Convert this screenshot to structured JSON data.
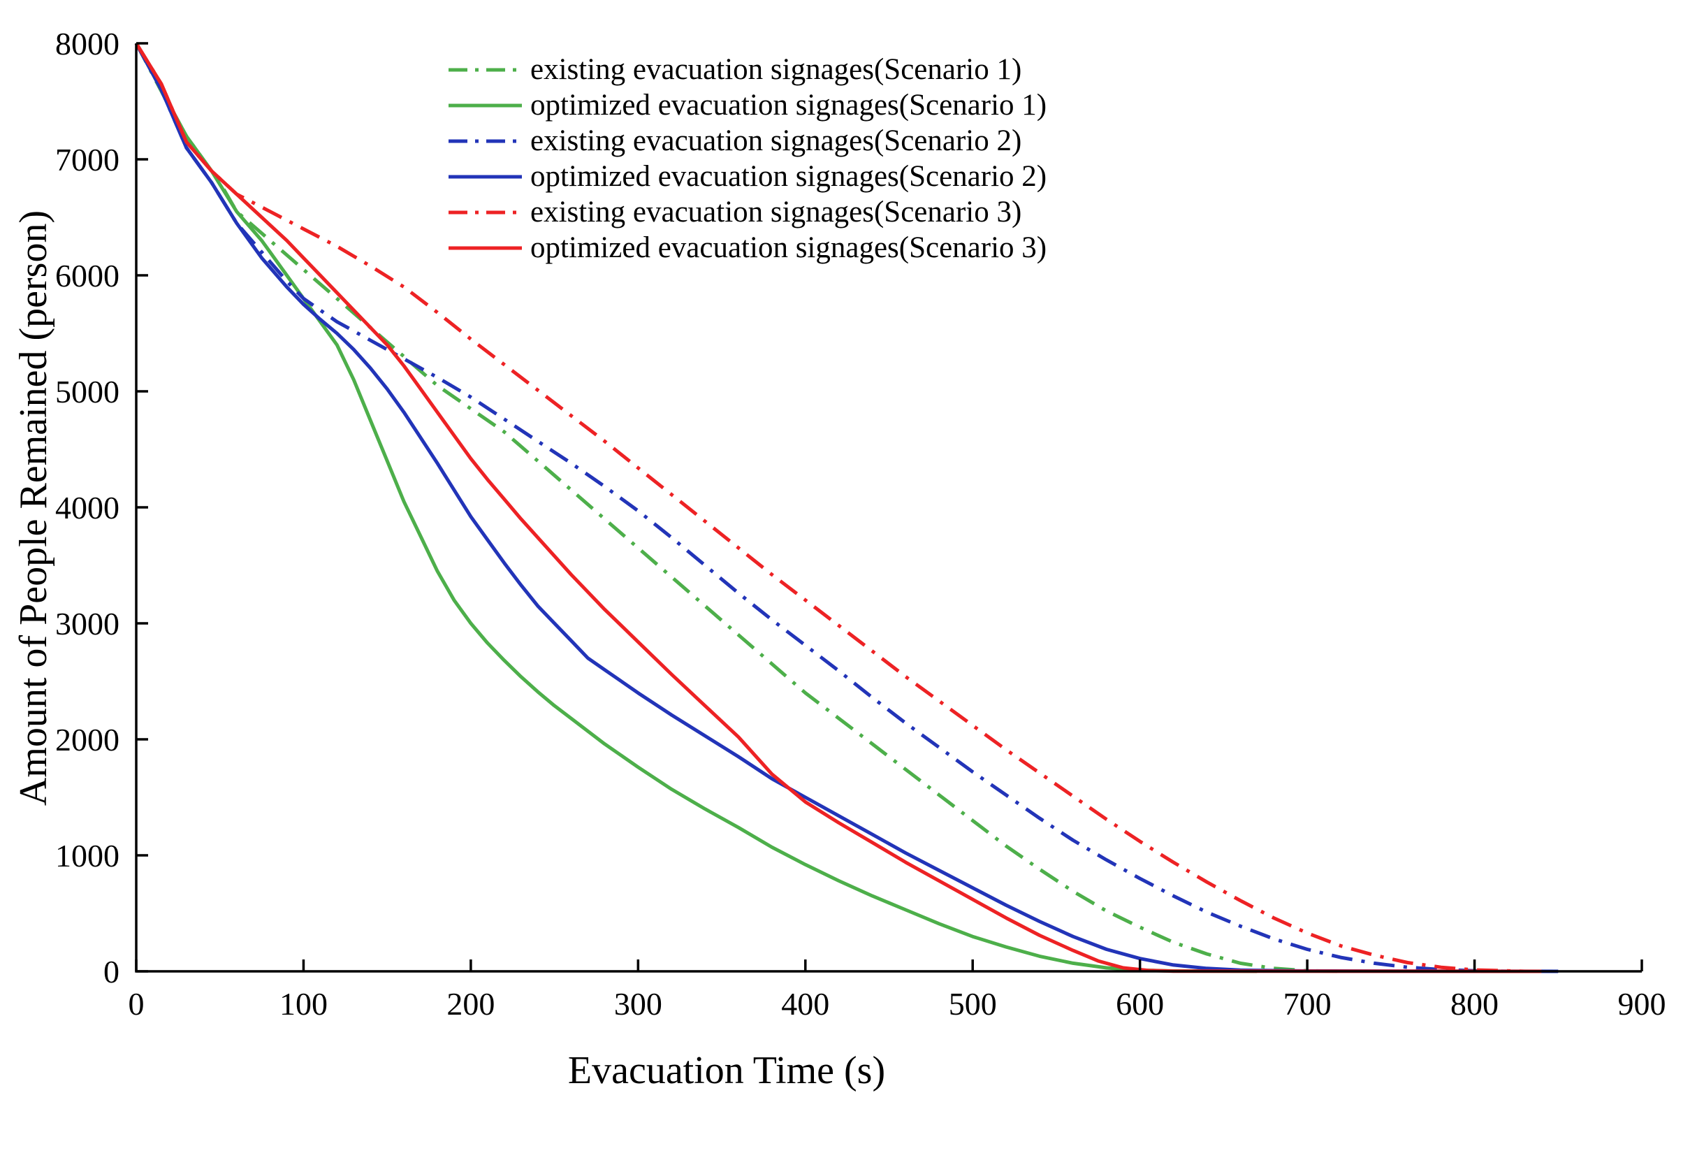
{
  "chart_data": {
    "type": "line",
    "title": "",
    "xlabel": "Evacuation Time (s)",
    "ylabel": "Amount of People Remained (person)",
    "xlim": [
      0,
      900
    ],
    "ylim": [
      0,
      8000
    ],
    "xticks": [
      0,
      100,
      200,
      300,
      400,
      500,
      600,
      700,
      800,
      900
    ],
    "yticks": [
      0,
      1000,
      2000,
      3000,
      4000,
      5000,
      6000,
      7000,
      8000
    ],
    "grid": false,
    "legend_position": "top-center-inside",
    "axis_color": "#000000",
    "series": [
      {
        "name": "existing evacuation signages(Scenario 1)",
        "id": "existing-scenario-1",
        "color": "#4daf4a",
        "style": "dashdot",
        "points": [
          [
            0,
            8000
          ],
          [
            20,
            7450
          ],
          [
            30,
            7200
          ],
          [
            50,
            6800
          ],
          [
            60,
            6550
          ],
          [
            80,
            6300
          ],
          [
            100,
            6050
          ],
          [
            120,
            5800
          ],
          [
            140,
            5550
          ],
          [
            160,
            5300
          ],
          [
            180,
            5050
          ],
          [
            200,
            4850
          ],
          [
            220,
            4650
          ],
          [
            240,
            4400
          ],
          [
            260,
            4150
          ],
          [
            280,
            3900
          ],
          [
            300,
            3650
          ],
          [
            320,
            3400
          ],
          [
            340,
            3150
          ],
          [
            360,
            2900
          ],
          [
            380,
            2650
          ],
          [
            400,
            2400
          ],
          [
            420,
            2180
          ],
          [
            440,
            1960
          ],
          [
            460,
            1740
          ],
          [
            480,
            1520
          ],
          [
            500,
            1300
          ],
          [
            520,
            1080
          ],
          [
            540,
            880
          ],
          [
            560,
            690
          ],
          [
            580,
            520
          ],
          [
            600,
            380
          ],
          [
            620,
            250
          ],
          [
            640,
            150
          ],
          [
            660,
            70
          ],
          [
            680,
            25
          ],
          [
            700,
            5
          ],
          [
            720,
            0
          ]
        ]
      },
      {
        "name": "optimized evacuation signages(Scenario 1)",
        "id": "optimized-scenario-1",
        "color": "#4daf4a",
        "style": "solid",
        "points": [
          [
            0,
            8000
          ],
          [
            15,
            7600
          ],
          [
            30,
            7200
          ],
          [
            45,
            6900
          ],
          [
            60,
            6550
          ],
          [
            75,
            6300
          ],
          [
            90,
            6000
          ],
          [
            100,
            5800
          ],
          [
            110,
            5600
          ],
          [
            120,
            5400
          ],
          [
            130,
            5100
          ],
          [
            140,
            4750
          ],
          [
            150,
            4400
          ],
          [
            160,
            4050
          ],
          [
            170,
            3750
          ],
          [
            180,
            3450
          ],
          [
            190,
            3200
          ],
          [
            200,
            3000
          ],
          [
            210,
            2830
          ],
          [
            220,
            2680
          ],
          [
            230,
            2540
          ],
          [
            240,
            2410
          ],
          [
            250,
            2290
          ],
          [
            260,
            2180
          ],
          [
            270,
            2070
          ],
          [
            280,
            1960
          ],
          [
            290,
            1860
          ],
          [
            300,
            1760
          ],
          [
            320,
            1570
          ],
          [
            340,
            1400
          ],
          [
            360,
            1240
          ],
          [
            380,
            1070
          ],
          [
            400,
            920
          ],
          [
            420,
            780
          ],
          [
            440,
            650
          ],
          [
            460,
            530
          ],
          [
            480,
            410
          ],
          [
            500,
            300
          ],
          [
            520,
            210
          ],
          [
            540,
            130
          ],
          [
            560,
            70
          ],
          [
            580,
            30
          ],
          [
            600,
            10
          ],
          [
            620,
            3
          ],
          [
            670,
            0
          ]
        ]
      },
      {
        "name": "existing evacuation signages(Scenario 2)",
        "id": "existing-scenario-2",
        "color": "#2234b8",
        "style": "dashdot",
        "points": [
          [
            0,
            8000
          ],
          [
            15,
            7600
          ],
          [
            30,
            7100
          ],
          [
            45,
            6800
          ],
          [
            60,
            6450
          ],
          [
            75,
            6200
          ],
          [
            90,
            5950
          ],
          [
            100,
            5800
          ],
          [
            110,
            5700
          ],
          [
            120,
            5600
          ],
          [
            130,
            5520
          ],
          [
            140,
            5440
          ],
          [
            150,
            5360
          ],
          [
            160,
            5280
          ],
          [
            180,
            5120
          ],
          [
            200,
            4950
          ],
          [
            220,
            4760
          ],
          [
            240,
            4570
          ],
          [
            260,
            4380
          ],
          [
            280,
            4180
          ],
          [
            300,
            3970
          ],
          [
            320,
            3740
          ],
          [
            340,
            3500
          ],
          [
            360,
            3260
          ],
          [
            380,
            3030
          ],
          [
            400,
            2810
          ],
          [
            420,
            2590
          ],
          [
            440,
            2360
          ],
          [
            460,
            2140
          ],
          [
            480,
            1930
          ],
          [
            500,
            1720
          ],
          [
            520,
            1520
          ],
          [
            540,
            1320
          ],
          [
            560,
            1130
          ],
          [
            580,
            960
          ],
          [
            600,
            800
          ],
          [
            620,
            650
          ],
          [
            640,
            510
          ],
          [
            660,
            390
          ],
          [
            680,
            280
          ],
          [
            700,
            190
          ],
          [
            720,
            120
          ],
          [
            740,
            70
          ],
          [
            760,
            35
          ],
          [
            780,
            15
          ],
          [
            800,
            5
          ],
          [
            820,
            0
          ]
        ]
      },
      {
        "name": "optimized evacuation signages(Scenario 2)",
        "id": "optimized-scenario-2",
        "color": "#2234b8",
        "style": "solid",
        "points": [
          [
            0,
            8000
          ],
          [
            15,
            7600
          ],
          [
            30,
            7100
          ],
          [
            45,
            6800
          ],
          [
            60,
            6450
          ],
          [
            75,
            6150
          ],
          [
            90,
            5900
          ],
          [
            100,
            5750
          ],
          [
            110,
            5620
          ],
          [
            120,
            5500
          ],
          [
            130,
            5360
          ],
          [
            140,
            5200
          ],
          [
            150,
            5020
          ],
          [
            160,
            4820
          ],
          [
            170,
            4600
          ],
          [
            180,
            4380
          ],
          [
            190,
            4150
          ],
          [
            200,
            3920
          ],
          [
            210,
            3720
          ],
          [
            220,
            3520
          ],
          [
            230,
            3330
          ],
          [
            240,
            3150
          ],
          [
            250,
            3000
          ],
          [
            260,
            2850
          ],
          [
            270,
            2700
          ],
          [
            280,
            2600
          ],
          [
            290,
            2500
          ],
          [
            300,
            2400
          ],
          [
            320,
            2210
          ],
          [
            340,
            2030
          ],
          [
            360,
            1850
          ],
          [
            380,
            1660
          ],
          [
            400,
            1500
          ],
          [
            420,
            1340
          ],
          [
            440,
            1180
          ],
          [
            460,
            1020
          ],
          [
            480,
            870
          ],
          [
            500,
            720
          ],
          [
            520,
            570
          ],
          [
            540,
            430
          ],
          [
            560,
            300
          ],
          [
            580,
            190
          ],
          [
            600,
            110
          ],
          [
            620,
            55
          ],
          [
            640,
            25
          ],
          [
            660,
            10
          ],
          [
            700,
            3
          ],
          [
            850,
            0
          ]
        ]
      },
      {
        "name": "existing evacuation signages(Scenario 3)",
        "id": "existing-scenario-3",
        "color": "#ed2224",
        "style": "dashdot",
        "points": [
          [
            0,
            8000
          ],
          [
            15,
            7650
          ],
          [
            30,
            7150
          ],
          [
            45,
            6900
          ],
          [
            60,
            6700
          ],
          [
            80,
            6550
          ],
          [
            100,
            6400
          ],
          [
            120,
            6250
          ],
          [
            140,
            6080
          ],
          [
            160,
            5900
          ],
          [
            180,
            5680
          ],
          [
            200,
            5450
          ],
          [
            220,
            5230
          ],
          [
            240,
            5010
          ],
          [
            260,
            4790
          ],
          [
            280,
            4570
          ],
          [
            300,
            4340
          ],
          [
            320,
            4110
          ],
          [
            340,
            3880
          ],
          [
            360,
            3650
          ],
          [
            380,
            3420
          ],
          [
            400,
            3200
          ],
          [
            420,
            2980
          ],
          [
            440,
            2760
          ],
          [
            460,
            2540
          ],
          [
            480,
            2330
          ],
          [
            500,
            2120
          ],
          [
            520,
            1910
          ],
          [
            540,
            1710
          ],
          [
            560,
            1510
          ],
          [
            580,
            1310
          ],
          [
            600,
            1120
          ],
          [
            620,
            940
          ],
          [
            640,
            770
          ],
          [
            660,
            610
          ],
          [
            680,
            460
          ],
          [
            700,
            330
          ],
          [
            720,
            220
          ],
          [
            740,
            140
          ],
          [
            760,
            75
          ],
          [
            780,
            35
          ],
          [
            800,
            12
          ],
          [
            830,
            0
          ]
        ]
      },
      {
        "name": "optimized evacuation signages(Scenario 3)",
        "id": "optimized-scenario-3",
        "color": "#ed2224",
        "style": "solid",
        "points": [
          [
            0,
            8000
          ],
          [
            15,
            7650
          ],
          [
            30,
            7150
          ],
          [
            45,
            6900
          ],
          [
            60,
            6700
          ],
          [
            75,
            6500
          ],
          [
            90,
            6300
          ],
          [
            100,
            6150
          ],
          [
            110,
            6000
          ],
          [
            120,
            5850
          ],
          [
            130,
            5700
          ],
          [
            140,
            5550
          ],
          [
            150,
            5400
          ],
          [
            160,
            5220
          ],
          [
            170,
            5020
          ],
          [
            180,
            4820
          ],
          [
            190,
            4620
          ],
          [
            200,
            4420
          ],
          [
            210,
            4240
          ],
          [
            220,
            4070
          ],
          [
            230,
            3900
          ],
          [
            240,
            3740
          ],
          [
            250,
            3580
          ],
          [
            260,
            3420
          ],
          [
            270,
            3270
          ],
          [
            280,
            3120
          ],
          [
            290,
            2980
          ],
          [
            300,
            2840
          ],
          [
            320,
            2560
          ],
          [
            340,
            2290
          ],
          [
            360,
            2020
          ],
          [
            380,
            1700
          ],
          [
            400,
            1460
          ],
          [
            420,
            1280
          ],
          [
            440,
            1110
          ],
          [
            460,
            940
          ],
          [
            480,
            780
          ],
          [
            500,
            620
          ],
          [
            520,
            460
          ],
          [
            540,
            310
          ],
          [
            560,
            180
          ],
          [
            575,
            90
          ],
          [
            590,
            30
          ],
          [
            605,
            8
          ],
          [
            620,
            2
          ],
          [
            840,
            0
          ]
        ]
      }
    ]
  }
}
